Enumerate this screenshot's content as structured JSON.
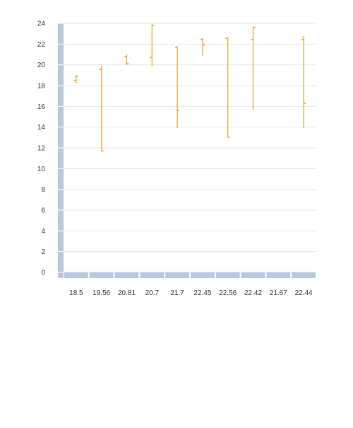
{
  "colors": {
    "bar": "#e8a317",
    "axis_band": "#b8c8dc",
    "grid": "#e6e6e6",
    "background": "#ffffff"
  },
  "chart_data": {
    "type": "ohlc",
    "title": "",
    "xlabel": "",
    "ylabel": "",
    "grid": true,
    "ylim": [
      0,
      24
    ],
    "yticks": [
      0,
      2,
      4,
      6,
      8,
      10,
      12,
      14,
      16,
      18,
      20,
      22,
      24
    ],
    "categories": [
      "18.5",
      "19.56",
      "20.81",
      "20.7",
      "21.7",
      "22.45",
      "22.56",
      "22.42",
      "21.67",
      "22.44"
    ],
    "series": [
      {
        "points": [
          {
            "open": 18.5,
            "high": 19.0,
            "low": 18.2,
            "close": 18.9
          },
          {
            "open": 19.56,
            "high": 19.9,
            "low": 11.7,
            "close": 11.7
          },
          {
            "open": 20.81,
            "high": 21.0,
            "low": 20.0,
            "close": 20.1
          },
          {
            "open": 20.7,
            "high": 23.9,
            "low": 19.9,
            "close": 23.8
          },
          {
            "open": 21.7,
            "high": 21.8,
            "low": 13.9,
            "close": 15.6
          },
          {
            "open": 22.45,
            "high": 22.6,
            "low": 20.9,
            "close": 21.9
          },
          {
            "open": 22.56,
            "high": 22.6,
            "low": 13.0,
            "close": 13.0
          },
          {
            "open": 22.42,
            "high": 23.7,
            "low": 15.7,
            "close": 23.6
          },
          {
            "open": 21.67,
            "high": null,
            "low": null,
            "close": null
          },
          {
            "open": 22.44,
            "high": 22.8,
            "low": 13.9,
            "close": 16.3
          }
        ]
      }
    ]
  }
}
